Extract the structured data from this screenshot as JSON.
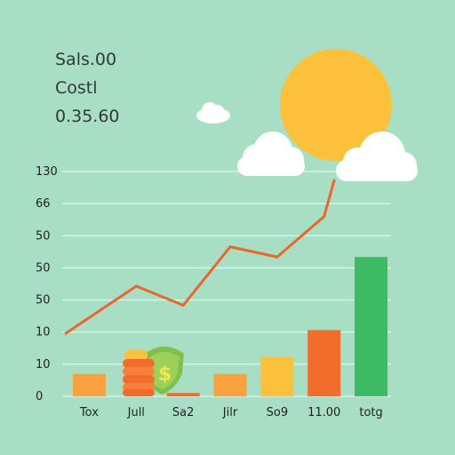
{
  "stats": {
    "line1": "Sals.00",
    "line2": "Costl",
    "line3": "0.35.60"
  },
  "colors": {
    "background": "#a8dec4",
    "line": "#e9672f",
    "sun": "#fbc13a",
    "cloud": "#ffffff",
    "grid": "#ffffff"
  },
  "icons": [
    "sun-icon",
    "cloud-icon",
    "coin-stack-icon",
    "money-shield-icon"
  ],
  "chart_data": {
    "type": "bar",
    "y_tick_labels": [
      "130",
      "66",
      "50",
      "50",
      "50",
      "10",
      "10",
      "0"
    ],
    "categories": [
      "Tox",
      "Jull",
      "Sa2",
      "Jilr",
      "So9",
      "11.00",
      "totg"
    ],
    "series": [
      {
        "type": "bar",
        "values": [
          0.1,
          0.0,
          0.015,
          0.1,
          0.175,
          0.295,
          0.62
        ],
        "colors": [
          "#f9a03f",
          "#f9a03f",
          "#f26d2c",
          "#f9a03f",
          "#fbc13a",
          "#f26d2c",
          "#3dbb63"
        ]
      },
      {
        "type": "line",
        "values": [
          0.28,
          0.49,
          0.405,
          0.665,
          0.62,
          0.8,
          0.96
        ]
      }
    ],
    "ylim": [
      0,
      1
    ],
    "grid": true,
    "legend": "none"
  }
}
